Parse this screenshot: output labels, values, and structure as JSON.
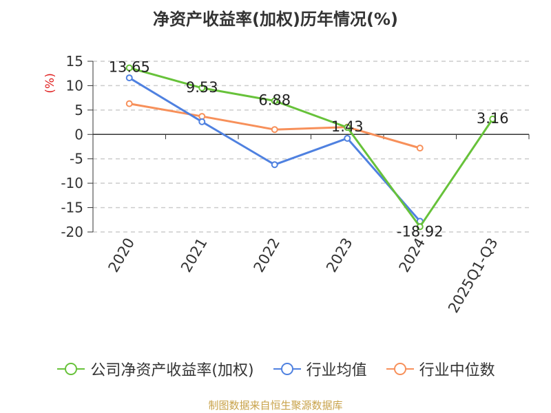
{
  "title": "净资产收益率(加权)历年情况(%)",
  "source": "制图数据来自恒生聚源数据库",
  "colors": {
    "company": "#67c23a",
    "industry_avg": "#4f81e0",
    "industry_median": "#f7905a",
    "grid": "#cccccc",
    "axis": "#333333",
    "unit": "#e02020"
  },
  "chart_data": {
    "type": "line",
    "title": "净资产收益率(加权)历年情况(%)",
    "ylabel": "(%)",
    "categories": [
      "2020",
      "2021",
      "2022",
      "2023",
      "2024",
      "2025Q1-Q3"
    ],
    "ylim": [
      -20,
      15
    ],
    "yticks": [
      15,
      10,
      5,
      0,
      -5,
      -10,
      -15,
      -20
    ],
    "grid": true,
    "legend_position": "bottom",
    "series": [
      {
        "name": "公司净资产收益率(加权)",
        "values": [
          13.65,
          9.53,
          6.88,
          1.43,
          -18.92,
          3.16
        ],
        "data_labels": [
          "13.65",
          "9.53",
          "6.88",
          "1.43",
          "-18.92",
          "3.16"
        ]
      },
      {
        "name": "行业均值",
        "values": [
          11.6,
          2.6,
          -6.2,
          -0.8,
          -17.8,
          null
        ]
      },
      {
        "name": "行业中位数",
        "values": [
          6.3,
          3.7,
          1.0,
          1.5,
          -2.8,
          null
        ]
      }
    ]
  }
}
